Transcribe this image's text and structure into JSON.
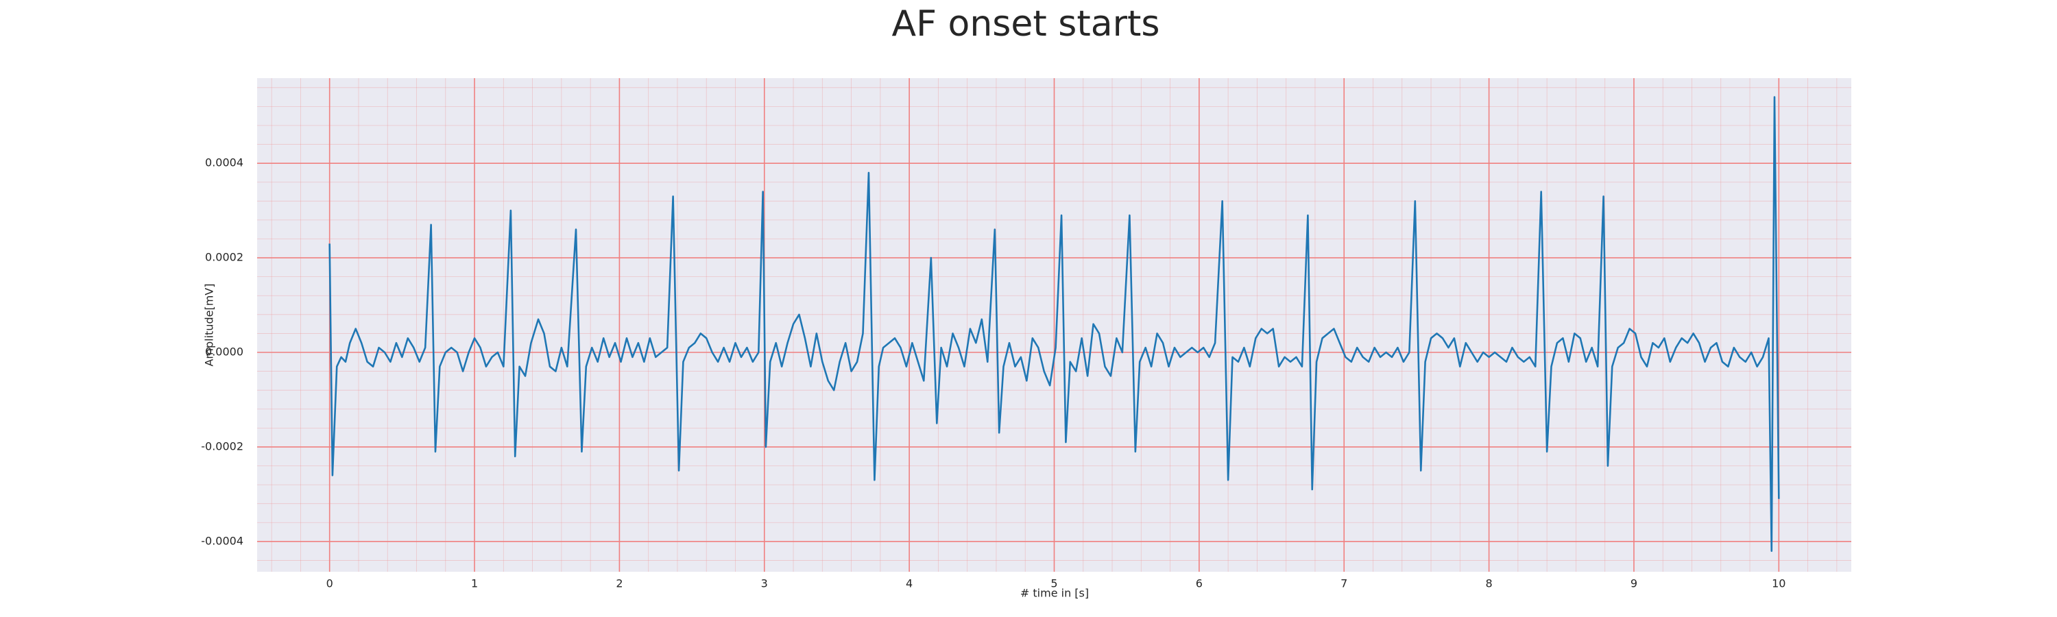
{
  "chart_data": {
    "type": "line",
    "title": "AF onset starts",
    "xlabel": "# time in [s]",
    "ylabel": "Amplitude[mV]",
    "color": "#1f77b4",
    "background": "#eaeaf2",
    "grid": true,
    "grid_color": "#f08080",
    "minor_grid_divisions": 5,
    "xlim": [
      -0.5,
      10.5
    ],
    "ylim": [
      -0.000464,
      0.00058
    ],
    "xticks": [
      0,
      1,
      2,
      3,
      4,
      5,
      6,
      7,
      8,
      9,
      10
    ],
    "yticks": [
      {
        "value": -0.0004,
        "label": "-0.0004"
      },
      {
        "value": -0.0002,
        "label": "-0.0002"
      },
      {
        "value": 0,
        "label": "0.0000"
      },
      {
        "value": 0.0002,
        "label": "0.0002"
      },
      {
        "value": 0.0004,
        "label": "0.0004"
      }
    ],
    "x": [
      0.0,
      0.02,
      0.05,
      0.08,
      0.11,
      0.14,
      0.18,
      0.22,
      0.26,
      0.3,
      0.34,
      0.38,
      0.42,
      0.46,
      0.5,
      0.54,
      0.58,
      0.62,
      0.66,
      0.7,
      0.73,
      0.76,
      0.8,
      0.84,
      0.88,
      0.92,
      0.96,
      1.0,
      1.04,
      1.08,
      1.12,
      1.16,
      1.2,
      1.25,
      1.28,
      1.31,
      1.35,
      1.39,
      1.44,
      1.48,
      1.52,
      1.56,
      1.6,
      1.64,
      1.7,
      1.74,
      1.77,
      1.81,
      1.85,
      1.89,
      1.93,
      1.97,
      2.01,
      2.05,
      2.09,
      2.13,
      2.17,
      2.21,
      2.25,
      2.29,
      2.33,
      2.37,
      2.41,
      2.44,
      2.48,
      2.52,
      2.56,
      2.6,
      2.64,
      2.68,
      2.72,
      2.76,
      2.8,
      2.84,
      2.88,
      2.92,
      2.96,
      2.99,
      3.01,
      3.04,
      3.08,
      3.12,
      3.16,
      3.2,
      3.24,
      3.28,
      3.32,
      3.36,
      3.4,
      3.44,
      3.48,
      3.52,
      3.56,
      3.6,
      3.64,
      3.68,
      3.72,
      3.76,
      3.79,
      3.82,
      3.86,
      3.9,
      3.94,
      3.98,
      4.02,
      4.06,
      4.1,
      4.15,
      4.19,
      4.22,
      4.26,
      4.3,
      4.34,
      4.38,
      4.42,
      4.46,
      4.5,
      4.54,
      4.59,
      4.62,
      4.65,
      4.69,
      4.73,
      4.77,
      4.81,
      4.85,
      4.89,
      4.93,
      4.97,
      5.01,
      5.05,
      5.08,
      5.11,
      5.15,
      5.19,
      5.23,
      5.27,
      5.31,
      5.35,
      5.39,
      5.43,
      5.47,
      5.52,
      5.56,
      5.59,
      5.63,
      5.67,
      5.71,
      5.75,
      5.79,
      5.83,
      5.87,
      5.91,
      5.95,
      5.99,
      6.03,
      6.07,
      6.11,
      6.16,
      6.2,
      6.23,
      6.27,
      6.31,
      6.35,
      6.39,
      6.43,
      6.47,
      6.51,
      6.55,
      6.59,
      6.63,
      6.67,
      6.71,
      6.75,
      6.78,
      6.81,
      6.85,
      6.89,
      6.93,
      6.97,
      7.01,
      7.05,
      7.09,
      7.13,
      7.17,
      7.21,
      7.25,
      7.29,
      7.33,
      7.37,
      7.41,
      7.45,
      7.49,
      7.53,
      7.56,
      7.6,
      7.64,
      7.68,
      7.72,
      7.76,
      7.8,
      7.84,
      7.88,
      7.92,
      7.96,
      8.0,
      8.04,
      8.08,
      8.12,
      8.16,
      8.2,
      8.24,
      8.28,
      8.32,
      8.36,
      8.4,
      8.43,
      8.47,
      8.51,
      8.55,
      8.59,
      8.63,
      8.67,
      8.71,
      8.75,
      8.79,
      8.82,
      8.85,
      8.89,
      8.93,
      8.97,
      9.01,
      9.05,
      9.09,
      9.13,
      9.17,
      9.21,
      9.25,
      9.29,
      9.33,
      9.37,
      9.41,
      9.45,
      9.49,
      9.53,
      9.57,
      9.61,
      9.65,
      9.69,
      9.73,
      9.77,
      9.81,
      9.85,
      9.89,
      9.93,
      9.95,
      9.97,
      10.0
    ],
    "values": [
      0.00023,
      -0.00026,
      -3e-05,
      -1e-05,
      -2e-05,
      2e-05,
      5e-05,
      2e-05,
      -2e-05,
      -3e-05,
      1e-05,
      0.0,
      -2e-05,
      2e-05,
      -1e-05,
      3e-05,
      1e-05,
      -2e-05,
      1e-05,
      0.00027,
      -0.00021,
      -3e-05,
      0.0,
      1e-05,
      0.0,
      -4e-05,
      0.0,
      3e-05,
      1e-05,
      -3e-05,
      -1e-05,
      0.0,
      -3e-05,
      0.0003,
      -0.00022,
      -3e-05,
      -5e-05,
      2e-05,
      7e-05,
      4e-05,
      -3e-05,
      -4e-05,
      1e-05,
      -3e-05,
      0.00026,
      -0.00021,
      -3e-05,
      1e-05,
      -2e-05,
      3e-05,
      -1e-05,
      2e-05,
      -2e-05,
      3e-05,
      -1e-05,
      2e-05,
      -2e-05,
      3e-05,
      -1e-05,
      0.0,
      1e-05,
      0.00033,
      -0.00025,
      -2e-05,
      1e-05,
      2e-05,
      4e-05,
      3e-05,
      0.0,
      -2e-05,
      1e-05,
      -2e-05,
      2e-05,
      -1e-05,
      1e-05,
      -2e-05,
      0.0,
      0.00034,
      -0.0002,
      -2e-05,
      2e-05,
      -3e-05,
      2e-05,
      6e-05,
      8e-05,
      3e-05,
      -3e-05,
      4e-05,
      -2e-05,
      -6e-05,
      -8e-05,
      -2e-05,
      2e-05,
      -4e-05,
      -2e-05,
      4e-05,
      0.00038,
      -0.00027,
      -3e-05,
      1e-05,
      2e-05,
      3e-05,
      1e-05,
      -3e-05,
      2e-05,
      -2e-05,
      -6e-05,
      0.0002,
      -0.00015,
      1e-05,
      -3e-05,
      4e-05,
      1e-05,
      -3e-05,
      5e-05,
      2e-05,
      7e-05,
      -2e-05,
      0.00026,
      -0.00017,
      -3e-05,
      2e-05,
      -3e-05,
      -1e-05,
      -6e-05,
      3e-05,
      1e-05,
      -4e-05,
      -7e-05,
      1e-05,
      0.00029,
      -0.00019,
      -2e-05,
      -4e-05,
      3e-05,
      -5e-05,
      6e-05,
      4e-05,
      -3e-05,
      -5e-05,
      3e-05,
      0.0,
      0.00029,
      -0.00021,
      -2e-05,
      1e-05,
      -3e-05,
      4e-05,
      2e-05,
      -3e-05,
      1e-05,
      -1e-05,
      0.0,
      1e-05,
      0.0,
      1e-05,
      -1e-05,
      2e-05,
      0.00032,
      -0.00027,
      -1e-05,
      -2e-05,
      1e-05,
      -3e-05,
      3e-05,
      5e-05,
      4e-05,
      5e-05,
      -3e-05,
      -1e-05,
      -2e-05,
      -1e-05,
      -3e-05,
      0.00029,
      -0.00029,
      -2e-05,
      3e-05,
      4e-05,
      5e-05,
      2e-05,
      -1e-05,
      -2e-05,
      1e-05,
      -1e-05,
      -2e-05,
      1e-05,
      -1e-05,
      0.0,
      -1e-05,
      1e-05,
      -2e-05,
      0.0,
      0.00032,
      -0.00025,
      -2e-05,
      3e-05,
      4e-05,
      3e-05,
      1e-05,
      3e-05,
      -3e-05,
      2e-05,
      0.0,
      -2e-05,
      0.0,
      -1e-05,
      0.0,
      -1e-05,
      -2e-05,
      1e-05,
      -1e-05,
      -2e-05,
      -1e-05,
      -3e-05,
      0.00034,
      -0.00021,
      -3e-05,
      2e-05,
      3e-05,
      -2e-05,
      4e-05,
      3e-05,
      -2e-05,
      1e-05,
      -3e-05,
      0.00033,
      -0.00024,
      -3e-05,
      1e-05,
      2e-05,
      5e-05,
      4e-05,
      -1e-05,
      -3e-05,
      2e-05,
      1e-05,
      3e-05,
      -2e-05,
      1e-05,
      3e-05,
      2e-05,
      4e-05,
      2e-05,
      -2e-05,
      1e-05,
      2e-05,
      -2e-05,
      -3e-05,
      1e-05,
      -1e-05,
      -2e-05,
      0.0,
      -3e-05,
      -1e-05,
      3e-05,
      -0.00042,
      0.00054,
      -0.00031
    ]
  }
}
